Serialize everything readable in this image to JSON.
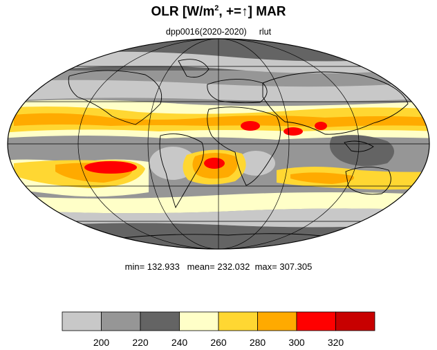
{
  "title": {
    "prefix": "OLR [W/m",
    "sup": "2",
    "suffix": ", +=↑] MAR"
  },
  "subtitle": {
    "dataset": "dpp0016(2020-2020)",
    "variable": "rlut"
  },
  "stats": {
    "text": "min= 132.933   mean= 232.032  max= 307.305"
  },
  "colorbar": {
    "colors": [
      "#c8c8c8",
      "#969696",
      "#646464",
      "#ffffc8",
      "#ffd732",
      "#ffaa00",
      "#ff0000",
      "#c80000"
    ],
    "tick_labels": [
      "200",
      "220",
      "240",
      "260",
      "280",
      "300",
      "320"
    ]
  },
  "chart_data": {
    "type": "heatmap",
    "projection": "mollweide",
    "variable": "OLR",
    "units": "W/m^2",
    "month": "MAR",
    "levels": [
      200,
      220,
      240,
      260,
      280,
      300,
      320
    ],
    "min": 132.933,
    "mean": 232.032,
    "max": 307.305,
    "gridlines": {
      "lon_step": 60,
      "lat_step": 30
    }
  }
}
